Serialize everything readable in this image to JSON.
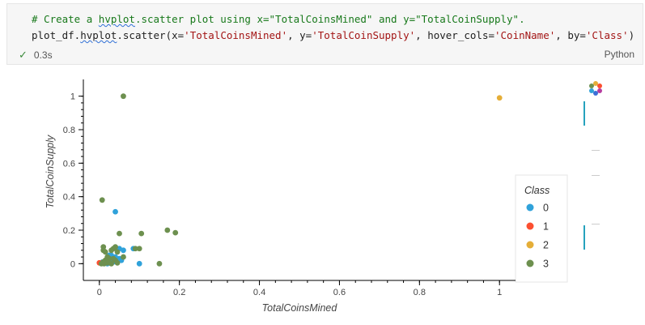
{
  "cell": {
    "comment_prefix": "# Create a ",
    "comment_squig": "hvplot",
    "comment_rest": ".scatter plot using x=\"TotalCoinsMined\" and y=\"TotalCoinSupply\".",
    "code_a": "plot_df.",
    "code_squig": "hvplot",
    "code_b": ".scatter(x=",
    "code_s1": "'TotalCoinsMined'",
    "code_c": ", y=",
    "code_s2": "'TotalCoinSupply'",
    "code_d": ", hover_cols=",
    "code_s3": "'CoinName'",
    "code_e": ", by=",
    "code_s4": "'Class'",
    "code_f": ")",
    "status_time": "0.3s",
    "language": "Python"
  },
  "toolbar": {
    "logo_icon": "bokeh-logo-icon",
    "tools": [
      "pan-tool-icon",
      "box-zoom-tool-icon",
      "wheel-zoom-tool-icon",
      "save-tool-icon",
      "reset-tool-icon",
      "hover-tool-icon"
    ]
  },
  "chart_data": {
    "type": "scatter",
    "xlabel": "TotalCoinsMined",
    "ylabel": "TotalCoinSupply",
    "xlim": [
      -0.04,
      1.04
    ],
    "ylim": [
      -0.1,
      1.1
    ],
    "xticks": [
      0,
      0.2,
      0.4,
      0.6,
      0.8,
      1
    ],
    "xtick_labels": [
      "0",
      "0.2",
      "0.4",
      "0.6",
      "0.8",
      "1"
    ],
    "yticks": [
      0,
      0.2,
      0.4,
      0.6,
      0.8,
      1
    ],
    "ytick_labels": [
      "0",
      "0.2",
      "0.4",
      "0.6",
      "0.8",
      "1"
    ],
    "legend": {
      "title": "Class",
      "placement": "right"
    },
    "series": [
      {
        "name": "0",
        "color": "#30a2da",
        "points": [
          [
            0.04,
            0.31
          ],
          [
            0.025,
            0.05
          ],
          [
            0.05,
            0.09
          ],
          [
            0.06,
            0.08
          ],
          [
            0.085,
            0.09
          ],
          [
            0.1,
            0.0
          ],
          [
            0.05,
            0.03
          ],
          [
            0.03,
            0.02
          ],
          [
            0.02,
            0.02
          ],
          [
            0.04,
            0.04
          ],
          [
            0.045,
            0.02
          ],
          [
            0.055,
            0.02
          ],
          [
            0.015,
            0.01
          ],
          [
            0.035,
            0.01
          ],
          [
            0.02,
            0.0
          ],
          [
            0.045,
            0.08
          ],
          [
            0.03,
            0.05
          ],
          [
            0.008,
            0.01
          ]
        ]
      },
      {
        "name": "1",
        "color": "#fc4f30",
        "points": [
          [
            0.0,
            0.005
          ]
        ]
      },
      {
        "name": "2",
        "color": "#e5ae38",
        "points": [
          [
            1.0,
            0.99
          ]
        ]
      },
      {
        "name": "3",
        "color": "#6d904f",
        "points": [
          [
            0.06,
            1.0
          ],
          [
            0.007,
            0.38
          ],
          [
            0.05,
            0.18
          ],
          [
            0.105,
            0.18
          ],
          [
            0.17,
            0.2
          ],
          [
            0.19,
            0.185
          ],
          [
            0.15,
            0.0
          ],
          [
            0.1,
            0.09
          ],
          [
            0.09,
            0.09
          ],
          [
            0.04,
            0.1
          ],
          [
            0.01,
            0.1
          ],
          [
            0.01,
            0.08
          ],
          [
            0.015,
            0.07
          ],
          [
            0.035,
            0.09
          ],
          [
            0.03,
            0.08
          ],
          [
            0.045,
            0.07
          ],
          [
            0.02,
            0.04
          ],
          [
            0.025,
            0.03
          ],
          [
            0.035,
            0.03
          ],
          [
            0.015,
            0.02
          ],
          [
            0.04,
            0.02
          ],
          [
            0.01,
            0.01
          ],
          [
            0.02,
            0.005
          ],
          [
            0.03,
            0.0
          ],
          [
            0.045,
            0.005
          ],
          [
            0.005,
            0.0
          ],
          [
            0.012,
            0.0
          ],
          [
            0.06,
            0.04
          ]
        ]
      }
    ]
  }
}
